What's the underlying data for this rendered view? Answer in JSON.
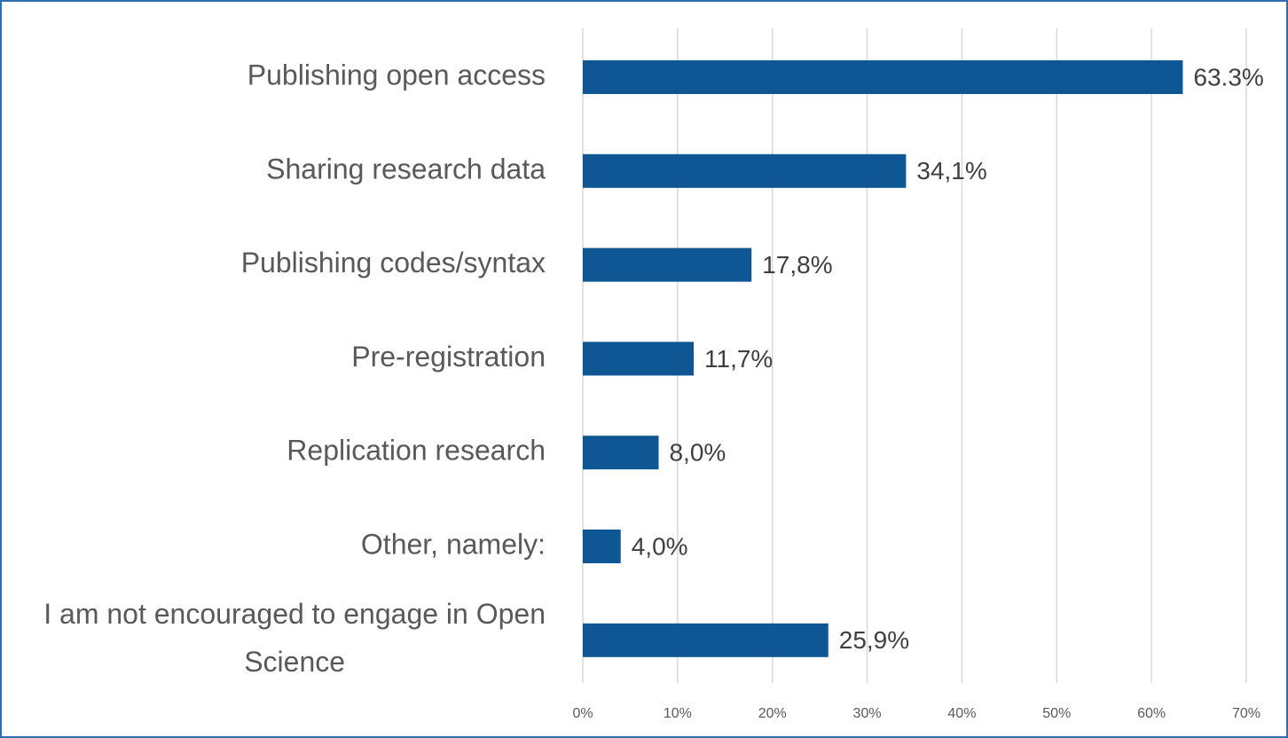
{
  "chart_data": {
    "type": "bar",
    "orientation": "horizontal",
    "categories": [
      "Publishing open access",
      "Sharing research data",
      "Publishing codes/syntax",
      "Pre-registration",
      "Replication research",
      "Other, namely:",
      "I am not encouraged to engage in Open Science"
    ],
    "values": [
      63.3,
      34.1,
      17.8,
      11.7,
      8.0,
      4.0,
      25.9
    ],
    "value_labels": [
      "63.3%",
      "34,1%",
      "17,8%",
      "11,7%",
      "8,0%",
      "4,0%",
      "25,9%"
    ],
    "color": "#0f5694",
    "xlim": [
      0,
      70
    ],
    "xticks": [
      {
        "value": 0,
        "label": "0%"
      },
      {
        "value": 10,
        "label": "10%"
      },
      {
        "value": 20,
        "label": "20%"
      },
      {
        "value": 30,
        "label": "30%"
      },
      {
        "value": 40,
        "label": "40%"
      },
      {
        "value": 50,
        "label": "50%"
      },
      {
        "value": 60,
        "label": "60%"
      },
      {
        "value": 70,
        "label": "70%"
      }
    ],
    "grid": true
  }
}
